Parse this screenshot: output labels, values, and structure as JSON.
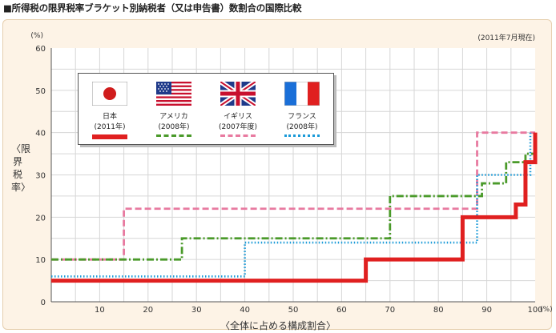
{
  "title": "■所得税の限界税率ブラケット別納税者（又は申告書）数割合の国際比較",
  "chart_data": {
    "type": "line",
    "line_shape": "step",
    "title": "■所得税の限界税率ブラケット別納税者（又は申告書）数割合の国際比較",
    "note": "(2011年7月現在)",
    "xlabel": "〈全体に占める構成割合〉",
    "ylabel": "〈限界税率〉",
    "x_unit": "(%)",
    "y_unit": "(%)",
    "xlim": [
      0,
      100
    ],
    "ylim": [
      0,
      60
    ],
    "x_ticks": [
      "10",
      "20",
      "30",
      "40",
      "50",
      "60",
      "70",
      "80",
      "90",
      "100"
    ],
    "y_ticks": [
      "0",
      "10",
      "20",
      "30",
      "40",
      "50",
      "60"
    ],
    "grid": true,
    "legend_position": "top-left",
    "series": [
      {
        "name": "日本",
        "year": "(2011年)",
        "color": "#e02020",
        "style": "solid",
        "x": [
          0,
          65,
          65,
          85,
          85,
          96,
          96,
          98,
          98,
          100,
          100
        ],
        "y": [
          5,
          5,
          10,
          10,
          20,
          20,
          23,
          23,
          33,
          33,
          40
        ]
      },
      {
        "name": "アメリカ",
        "year": "(2008年)",
        "color": "#4a9a2a",
        "style": "dashdot",
        "x": [
          0,
          27,
          27,
          70,
          70,
          89,
          89,
          94,
          94,
          98,
          98,
          100
        ],
        "y": [
          10,
          10,
          15,
          15,
          25,
          25,
          28,
          28,
          33,
          33,
          35,
          35
        ]
      },
      {
        "name": "イギリス",
        "year": "(2007年度)",
        "color": "#e87aa0",
        "style": "dashed",
        "x": [
          0,
          15,
          15,
          88,
          88,
          100
        ],
        "y": [
          10,
          10,
          22,
          22,
          40,
          40
        ]
      },
      {
        "name": "フランス",
        "year": "(2008年)",
        "color": "#1a9ad8",
        "style": "dotted",
        "x": [
          0,
          40,
          40,
          88,
          88,
          99,
          99
        ],
        "y": [
          6,
          6,
          14,
          14,
          30,
          30,
          40
        ]
      }
    ]
  },
  "icons": {
    "japan": "japan-flag-icon",
    "usa": "usa-flag-icon",
    "uk": "uk-flag-icon",
    "france": "france-flag-icon"
  }
}
